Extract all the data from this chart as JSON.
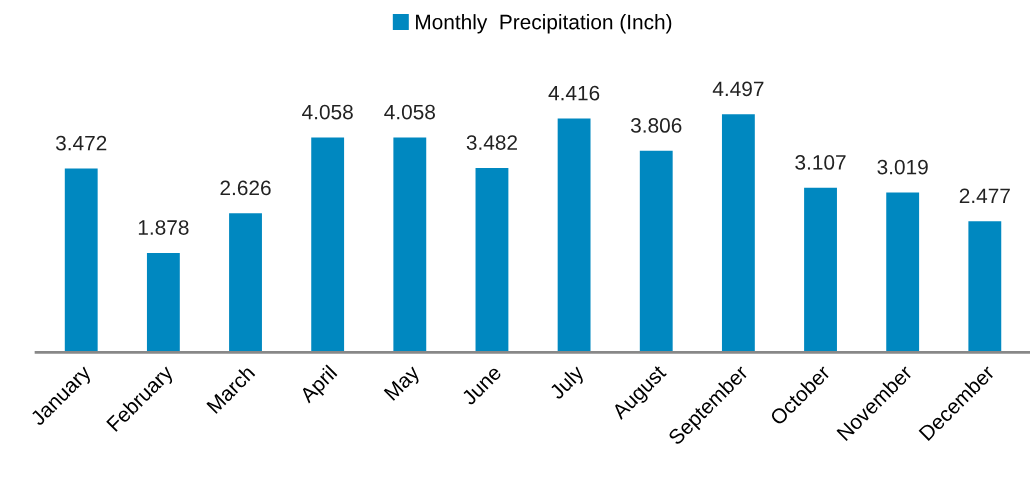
{
  "chart_data": {
    "type": "bar",
    "categories": [
      "January",
      "February",
      "March",
      "April",
      "May",
      "June",
      "July",
      "August",
      "September",
      "October",
      "November",
      "December"
    ],
    "series": [
      {
        "name": "Monthly  Precipitation (Inch)",
        "color": "#0088c0",
        "values": [
          3.472,
          1.878,
          2.626,
          4.058,
          4.058,
          3.482,
          4.416,
          3.806,
          4.497,
          3.107,
          3.019,
          2.477
        ]
      }
    ],
    "data_labels": true,
    "grid": false,
    "legend": "top"
  }
}
